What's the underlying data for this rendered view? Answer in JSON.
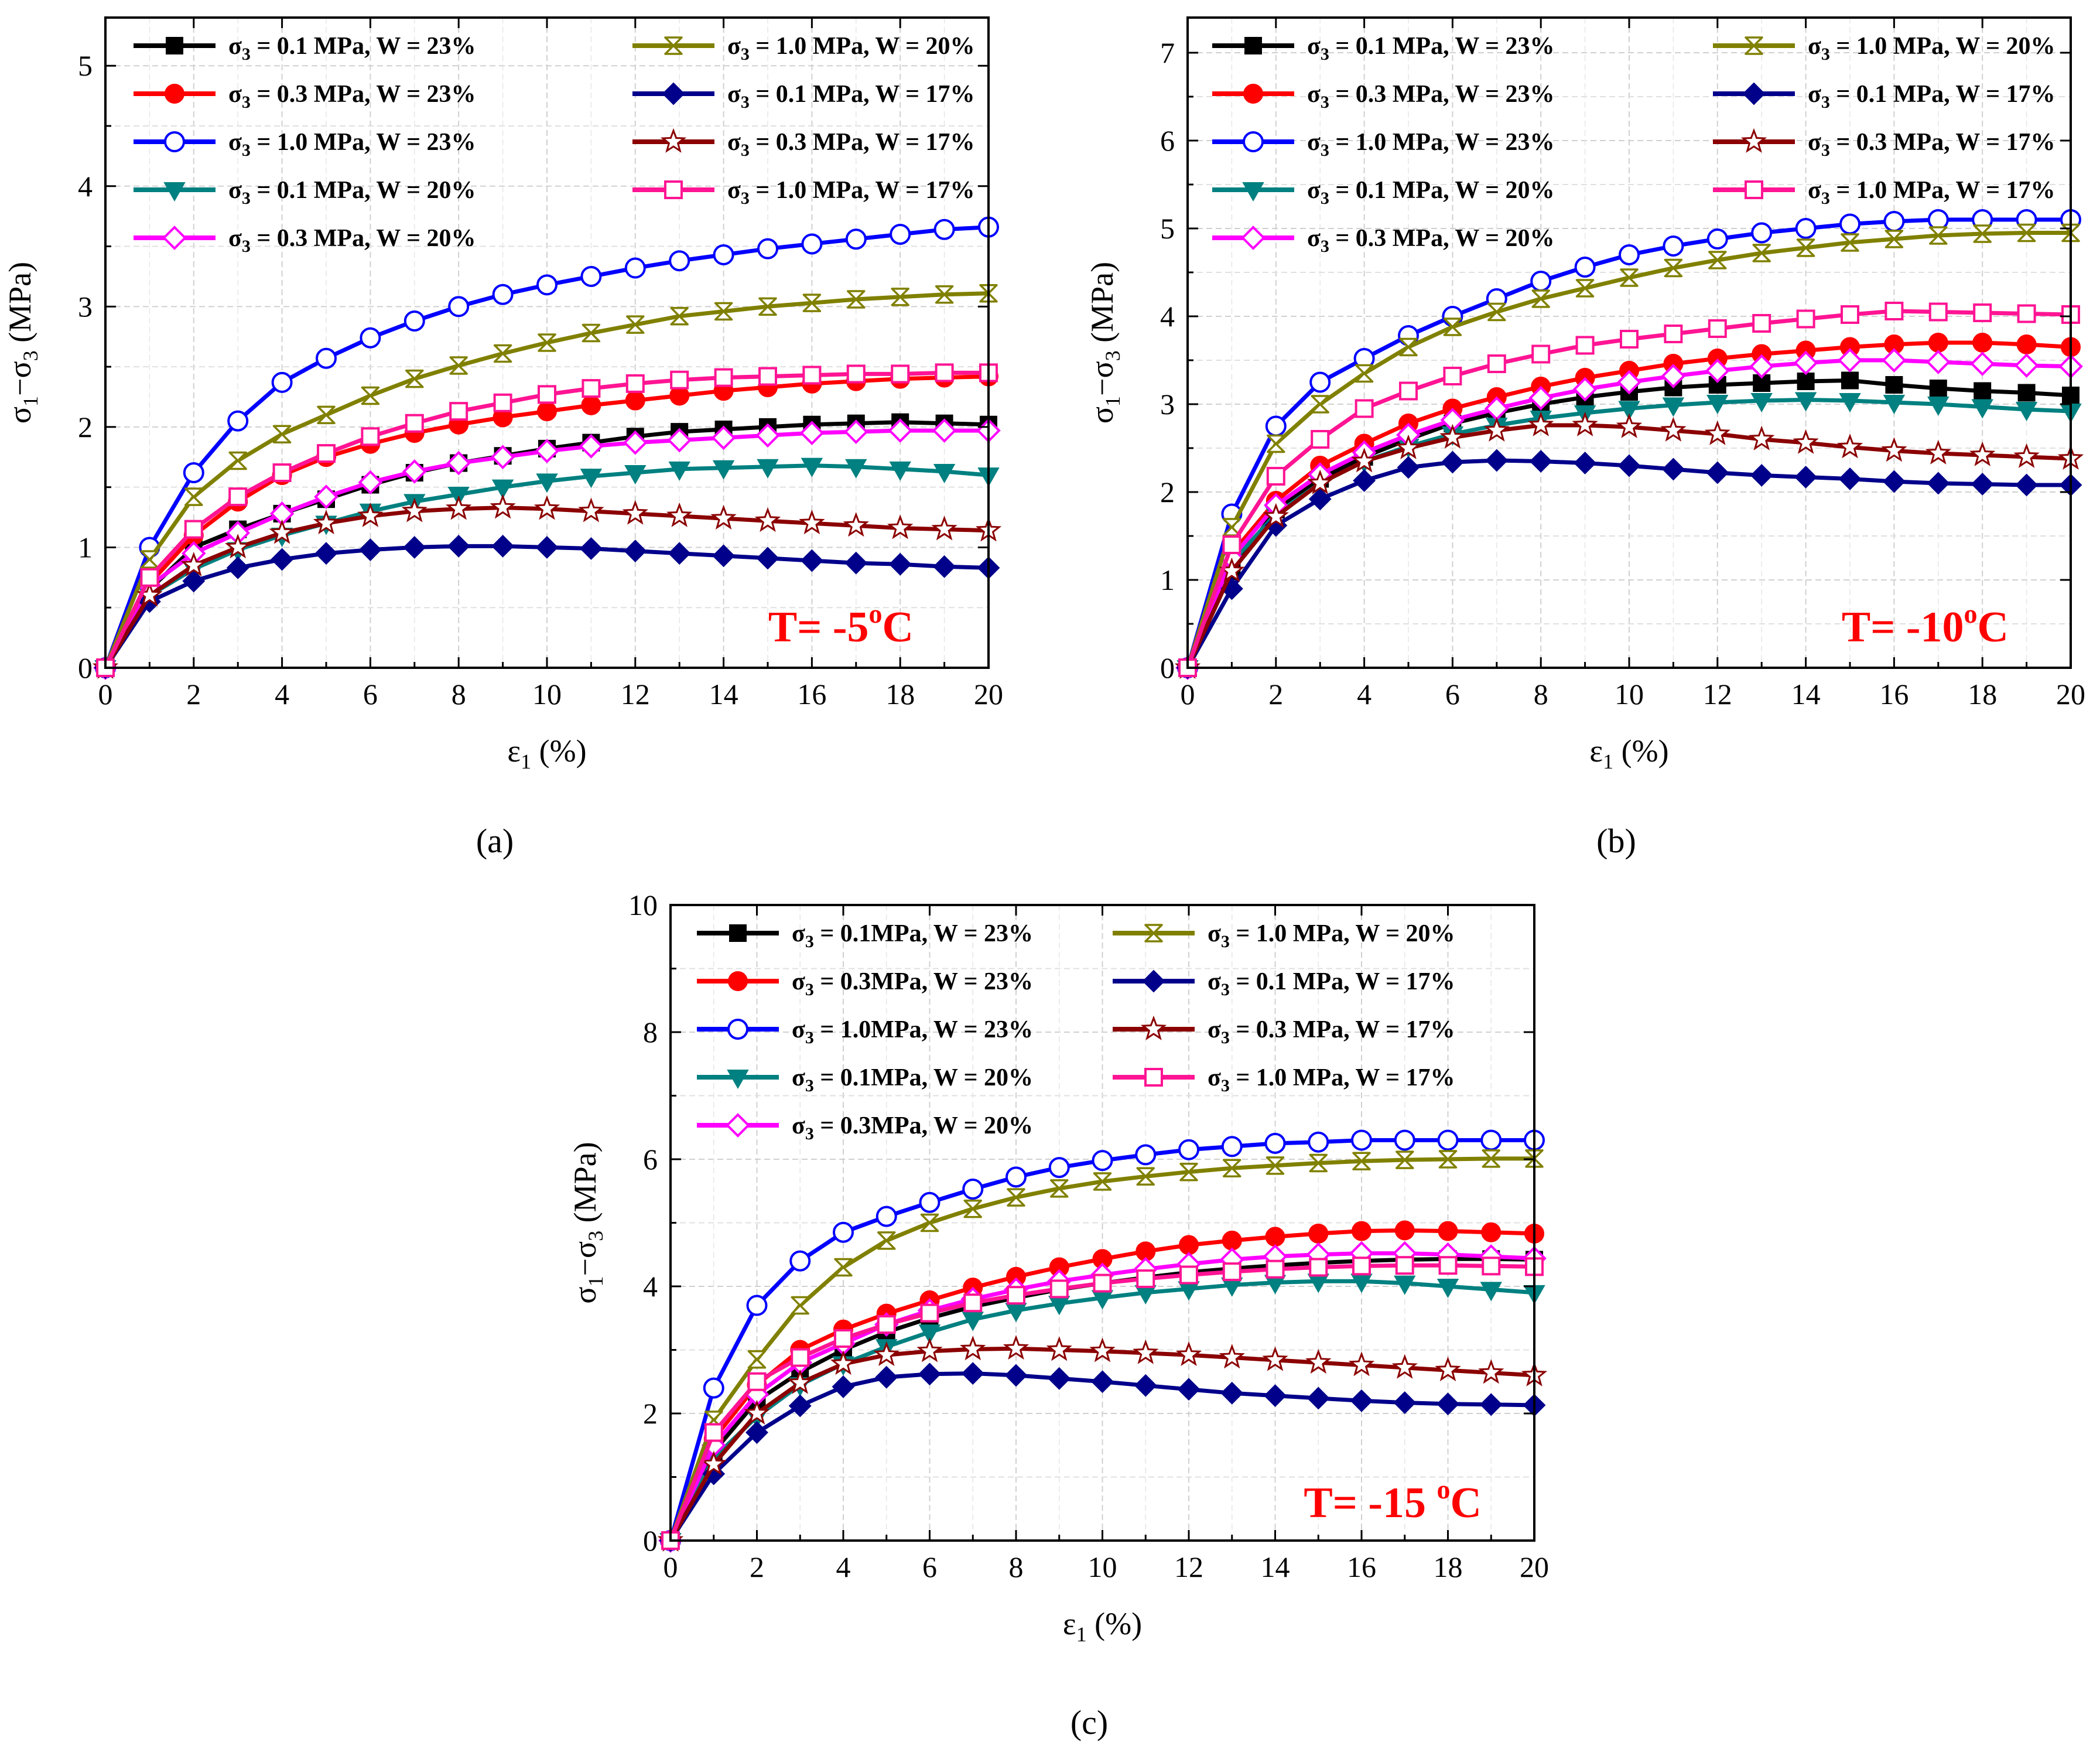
{
  "chart_data": [
    {
      "type": "line",
      "panel": "a",
      "caption": "(a)",
      "caption_bold": "a",
      "temperature_label": "T= -5",
      "temperature_sup": "o",
      "temperature_unit": "C",
      "xlabel": "ε",
      "xlabel_sub": "1",
      "xlabel_unit": " (%)",
      "ylabel_parts": [
        "σ",
        "1",
        "−σ",
        "3",
        " (MPa)"
      ],
      "xlim": [
        0,
        20
      ],
      "ylim": [
        0,
        5.4
      ],
      "xticks": [
        0,
        2,
        4,
        6,
        8,
        10,
        12,
        14,
        16,
        18,
        20
      ],
      "yticks": [
        0,
        1,
        2,
        3,
        4,
        5
      ],
      "grid": true,
      "legend_position": "top-left",
      "x": [
        0,
        1,
        2,
        3,
        4,
        5,
        6,
        7,
        8,
        9,
        10,
        11,
        12,
        13,
        14,
        15,
        16,
        17,
        18,
        19,
        20
      ],
      "series": [
        {
          "name": "= 0.1 MPa, W = 23%",
          "sigma": "σ",
          "sub": "3",
          "color": "#000000",
          "marker": "square-filled",
          "values": [
            0,
            0.65,
            1.0,
            1.15,
            1.28,
            1.4,
            1.52,
            1.62,
            1.7,
            1.76,
            1.82,
            1.87,
            1.92,
            1.96,
            1.98,
            2.0,
            2.02,
            2.03,
            2.04,
            2.03,
            2.02
          ]
        },
        {
          "name": "= 0.3 MPa, W = 23%",
          "sigma": "σ",
          "sub": "3",
          "color": "#ff0000",
          "marker": "circle-filled",
          "values": [
            0,
            0.7,
            1.1,
            1.38,
            1.6,
            1.75,
            1.86,
            1.95,
            2.02,
            2.08,
            2.13,
            2.18,
            2.22,
            2.26,
            2.3,
            2.33,
            2.36,
            2.38,
            2.4,
            2.41,
            2.42
          ]
        },
        {
          "name": "= 1.0 MPa, W = 23%",
          "sigma": "σ",
          "sub": "3",
          "color": "#0000ff",
          "marker": "circle-open",
          "values": [
            0,
            1.0,
            1.62,
            2.05,
            2.37,
            2.57,
            2.74,
            2.88,
            3.0,
            3.1,
            3.18,
            3.25,
            3.32,
            3.38,
            3.43,
            3.48,
            3.52,
            3.56,
            3.6,
            3.64,
            3.66
          ]
        },
        {
          "name": "= 0.1 MPa, W = 20%",
          "sigma": "σ",
          "sub": "3",
          "color": "#008080",
          "marker": "triangle-down-filled",
          "values": [
            0,
            0.6,
            0.82,
            0.98,
            1.1,
            1.2,
            1.3,
            1.38,
            1.44,
            1.5,
            1.55,
            1.59,
            1.62,
            1.65,
            1.66,
            1.67,
            1.68,
            1.67,
            1.65,
            1.63,
            1.6
          ]
        },
        {
          "name": "= 0.3 MPa, W = 20%",
          "sigma": "σ",
          "sub": "3",
          "color": "#ff00ff",
          "marker": "diamond-open",
          "values": [
            0,
            0.68,
            0.95,
            1.12,
            1.28,
            1.42,
            1.54,
            1.63,
            1.7,
            1.75,
            1.8,
            1.84,
            1.87,
            1.89,
            1.91,
            1.93,
            1.95,
            1.96,
            1.97,
            1.97,
            1.97
          ]
        },
        {
          "name": "= 1.0 MPa, W = 20%",
          "sigma": "σ",
          "sub": "3",
          "color": "#808000",
          "marker": "x-box",
          "values": [
            0,
            0.9,
            1.42,
            1.72,
            1.94,
            2.1,
            2.26,
            2.4,
            2.51,
            2.61,
            2.7,
            2.78,
            2.85,
            2.92,
            2.96,
            3.0,
            3.03,
            3.06,
            3.08,
            3.1,
            3.11
          ]
        },
        {
          "name": "= 0.1 MPa, W = 17%",
          "sigma": "σ",
          "sub": "3",
          "color": "#00008b",
          "marker": "diamond-filled",
          "values": [
            0,
            0.55,
            0.72,
            0.83,
            0.9,
            0.95,
            0.98,
            1.0,
            1.01,
            1.01,
            1.0,
            0.99,
            0.97,
            0.95,
            0.93,
            0.91,
            0.89,
            0.87,
            0.86,
            0.84,
            0.83
          ]
        },
        {
          "name": "= 0.3 MPa, W = 17%",
          "sigma": "σ",
          "sub": "3",
          "color": "#8b0000",
          "marker": "star-open",
          "values": [
            0,
            0.6,
            0.85,
            1.0,
            1.12,
            1.2,
            1.26,
            1.3,
            1.32,
            1.33,
            1.32,
            1.3,
            1.28,
            1.26,
            1.24,
            1.22,
            1.2,
            1.18,
            1.16,
            1.15,
            1.14
          ]
        },
        {
          "name": "= 1.0 MPa, W = 17%",
          "sigma": "σ",
          "sub": "3",
          "color": "#ff1493",
          "marker": "square-open",
          "values": [
            0,
            0.75,
            1.15,
            1.42,
            1.62,
            1.78,
            1.92,
            2.03,
            2.13,
            2.2,
            2.27,
            2.32,
            2.36,
            2.39,
            2.41,
            2.42,
            2.43,
            2.44,
            2.44,
            2.45,
            2.45
          ]
        }
      ]
    },
    {
      "type": "line",
      "panel": "b",
      "caption": "(b)",
      "caption_bold": "b",
      "temperature_label": "T= -10",
      "temperature_sup": "o",
      "temperature_unit": "C",
      "xlabel": "ε",
      "xlabel_sub": "1",
      "xlabel_unit": " (%)",
      "ylabel_parts": [
        "σ",
        "1",
        "−σ",
        "3",
        " (MPa)"
      ],
      "xlim": [
        0,
        20
      ],
      "ylim": [
        0,
        7.4
      ],
      "xticks": [
        0,
        2,
        4,
        6,
        8,
        10,
        12,
        14,
        16,
        18,
        20
      ],
      "yticks": [
        0,
        1,
        2,
        3,
        4,
        5,
        6,
        7
      ],
      "grid": true,
      "legend_position": "top-left",
      "x": [
        0,
        1,
        2,
        3,
        4,
        5,
        6,
        7,
        8,
        9,
        10,
        11,
        12,
        13,
        14,
        15,
        16,
        17,
        18,
        19,
        20
      ],
      "series": [
        {
          "name": "= 0.1 MPa, W = 23%",
          "sigma": "σ",
          "sub": "3",
          "color": "#000000",
          "marker": "square-filled",
          "values": [
            0,
            1.1,
            1.8,
            2.15,
            2.4,
            2.6,
            2.78,
            2.9,
            3.0,
            3.08,
            3.14,
            3.19,
            3.22,
            3.24,
            3.26,
            3.27,
            3.22,
            3.18,
            3.15,
            3.13,
            3.1
          ]
        },
        {
          "name": "= 0.3 MPa, W = 23%",
          "sigma": "σ",
          "sub": "3",
          "color": "#ff0000",
          "marker": "circle-filled",
          "values": [
            0,
            1.3,
            1.9,
            2.3,
            2.55,
            2.78,
            2.95,
            3.08,
            3.2,
            3.3,
            3.38,
            3.46,
            3.52,
            3.57,
            3.61,
            3.65,
            3.68,
            3.7,
            3.7,
            3.68,
            3.65
          ]
        },
        {
          "name": "= 1.0 MPa, W = 23%",
          "sigma": "σ",
          "sub": "3",
          "color": "#0000ff",
          "marker": "circle-open",
          "values": [
            0,
            1.75,
            2.75,
            3.25,
            3.52,
            3.78,
            4.0,
            4.2,
            4.4,
            4.56,
            4.7,
            4.8,
            4.88,
            4.95,
            5.0,
            5.05,
            5.08,
            5.1,
            5.1,
            5.1,
            5.1
          ]
        },
        {
          "name": "= 0.1 MPa, W = 20%",
          "sigma": "σ",
          "sub": "3",
          "color": "#008080",
          "marker": "triangle-down-filled",
          "values": [
            0,
            1.2,
            1.75,
            2.1,
            2.35,
            2.52,
            2.66,
            2.76,
            2.84,
            2.9,
            2.95,
            2.99,
            3.02,
            3.04,
            3.05,
            3.04,
            3.02,
            3.0,
            2.97,
            2.94,
            2.92
          ]
        },
        {
          "name": "= 0.3 MPa, W = 20%",
          "sigma": "σ",
          "sub": "3",
          "color": "#ff00ff",
          "marker": "diamond-open",
          "values": [
            0,
            1.25,
            1.85,
            2.2,
            2.45,
            2.65,
            2.82,
            2.95,
            3.07,
            3.17,
            3.25,
            3.32,
            3.38,
            3.43,
            3.47,
            3.5,
            3.5,
            3.48,
            3.46,
            3.44,
            3.43
          ]
        },
        {
          "name": "= 1.0 MPa, W = 20%",
          "sigma": "σ",
          "sub": "3",
          "color": "#808000",
          "marker": "x-box",
          "values": [
            0,
            1.6,
            2.55,
            3.0,
            3.35,
            3.65,
            3.88,
            4.05,
            4.2,
            4.32,
            4.44,
            4.55,
            4.64,
            4.72,
            4.78,
            4.84,
            4.88,
            4.92,
            4.94,
            4.95,
            4.95
          ]
        },
        {
          "name": "= 0.1 MPa, W = 17%",
          "sigma": "σ",
          "sub": "3",
          "color": "#00008b",
          "marker": "diamond-filled",
          "values": [
            0,
            0.9,
            1.62,
            1.92,
            2.13,
            2.28,
            2.34,
            2.36,
            2.35,
            2.33,
            2.3,
            2.26,
            2.22,
            2.19,
            2.17,
            2.15,
            2.12,
            2.1,
            2.09,
            2.08,
            2.08
          ]
        },
        {
          "name": "= 0.3 MPa, W = 17%",
          "sigma": "σ",
          "sub": "3",
          "color": "#8b0000",
          "marker": "star-open",
          "values": [
            0,
            1.1,
            1.72,
            2.1,
            2.35,
            2.5,
            2.62,
            2.7,
            2.76,
            2.76,
            2.74,
            2.7,
            2.66,
            2.6,
            2.56,
            2.51,
            2.47,
            2.44,
            2.42,
            2.4,
            2.38
          ]
        },
        {
          "name": "= 1.0 MPa, W = 17%",
          "sigma": "σ",
          "sub": "3",
          "color": "#ff1493",
          "marker": "square-open",
          "values": [
            0,
            1.4,
            2.18,
            2.6,
            2.95,
            3.15,
            3.32,
            3.46,
            3.57,
            3.67,
            3.74,
            3.8,
            3.86,
            3.92,
            3.97,
            4.02,
            4.06,
            4.05,
            4.04,
            4.03,
            4.02
          ]
        }
      ]
    },
    {
      "type": "line",
      "panel": "c",
      "caption": "(c)",
      "caption_bold": "c",
      "temperature_label": "T= -15 ",
      "temperature_sup": "o",
      "temperature_unit": "C",
      "xlabel": "ε",
      "xlabel_sub": "1",
      "xlabel_unit": " (%)",
      "ylabel_parts": [
        "σ",
        "1",
        "−σ",
        "3",
        " (MPa)"
      ],
      "xlim": [
        0,
        20
      ],
      "ylim": [
        0,
        10
      ],
      "xticks": [
        0,
        2,
        4,
        6,
        8,
        10,
        12,
        14,
        16,
        18,
        20
      ],
      "yticks": [
        0,
        2,
        4,
        6,
        8,
        10
      ],
      "grid": true,
      "legend_position": "top-left",
      "x": [
        0,
        1,
        2,
        3,
        4,
        5,
        6,
        7,
        8,
        9,
        10,
        11,
        12,
        13,
        14,
        15,
        16,
        17,
        18,
        19,
        20
      ],
      "series": [
        {
          "name": "= 0.1MPa, W = 23%",
          "sigma": "σ",
          "sub": "3",
          "color": "#000000",
          "marker": "square-filled",
          "values": [
            0,
            1.4,
            2.2,
            2.65,
            3.0,
            3.28,
            3.5,
            3.68,
            3.82,
            3.95,
            4.05,
            4.14,
            4.22,
            4.28,
            4.33,
            4.37,
            4.4,
            4.42,
            4.43,
            4.43,
            4.42
          ]
        },
        {
          "name": "= 0.3MPa, W = 23%",
          "sigma": "σ",
          "sub": "3",
          "color": "#ff0000",
          "marker": "circle-filled",
          "values": [
            0,
            1.6,
            2.45,
            3.0,
            3.32,
            3.57,
            3.78,
            3.98,
            4.15,
            4.3,
            4.43,
            4.55,
            4.65,
            4.72,
            4.78,
            4.83,
            4.87,
            4.88,
            4.87,
            4.85,
            4.83
          ]
        },
        {
          "name": "= 1.0MPa, W = 23%",
          "sigma": "σ",
          "sub": "3",
          "color": "#0000ff",
          "marker": "circle-open",
          "values": [
            0,
            2.4,
            3.7,
            4.4,
            4.85,
            5.1,
            5.32,
            5.53,
            5.72,
            5.87,
            5.98,
            6.07,
            6.15,
            6.2,
            6.25,
            6.27,
            6.3,
            6.3,
            6.3,
            6.3,
            6.3
          ]
        },
        {
          "name": "= 0.1MPa, W = 20%",
          "sigma": "σ",
          "sub": "3",
          "color": "#008080",
          "marker": "triangle-down-filled",
          "values": [
            0,
            1.3,
            1.95,
            2.45,
            2.78,
            3.05,
            3.28,
            3.48,
            3.62,
            3.73,
            3.82,
            3.9,
            3.96,
            4.02,
            4.06,
            4.08,
            4.08,
            4.05,
            4.0,
            3.95,
            3.9
          ]
        },
        {
          "name": "= 0.3MPa, W = 20%",
          "sigma": "σ",
          "sub": "3",
          "color": "#ff00ff",
          "marker": "diamond-open",
          "values": [
            0,
            1.5,
            2.3,
            2.8,
            3.1,
            3.4,
            3.62,
            3.8,
            3.95,
            4.08,
            4.18,
            4.27,
            4.35,
            4.42,
            4.47,
            4.5,
            4.52,
            4.52,
            4.5,
            4.47,
            4.44
          ]
        },
        {
          "name": "= 1.0 MPa, W = 20%",
          "sigma": "σ",
          "sub": "3",
          "color": "#808000",
          "marker": "x-box",
          "values": [
            0,
            1.9,
            2.85,
            3.7,
            4.3,
            4.72,
            5.0,
            5.22,
            5.4,
            5.54,
            5.65,
            5.73,
            5.8,
            5.86,
            5.9,
            5.94,
            5.97,
            5.99,
            6.0,
            6.01,
            6.01
          ]
        },
        {
          "name": "= 0.1 MPa, W = 17%",
          "sigma": "σ",
          "sub": "3",
          "color": "#00008b",
          "marker": "diamond-filled",
          "values": [
            0,
            1.05,
            1.7,
            2.12,
            2.42,
            2.57,
            2.62,
            2.63,
            2.6,
            2.55,
            2.5,
            2.44,
            2.38,
            2.32,
            2.28,
            2.24,
            2.2,
            2.17,
            2.15,
            2.14,
            2.13
          ]
        },
        {
          "name": "= 0.3 MPa, W = 17%",
          "sigma": "σ",
          "sub": "3",
          "color": "#8b0000",
          "marker": "star-open",
          "values": [
            0,
            1.2,
            2.0,
            2.48,
            2.78,
            2.92,
            2.98,
            3.01,
            3.02,
            3.0,
            2.98,
            2.95,
            2.92,
            2.88,
            2.84,
            2.8,
            2.76,
            2.72,
            2.68,
            2.64,
            2.6
          ]
        },
        {
          "name": "= 1.0 MPa, W = 17%",
          "sigma": "σ",
          "sub": "3",
          "color": "#ff1493",
          "marker": "square-open",
          "values": [
            0,
            1.7,
            2.5,
            2.88,
            3.18,
            3.4,
            3.58,
            3.74,
            3.86,
            3.96,
            4.05,
            4.12,
            4.18,
            4.23,
            4.27,
            4.3,
            4.32,
            4.33,
            4.33,
            4.32,
            4.31
          ]
        }
      ]
    }
  ]
}
